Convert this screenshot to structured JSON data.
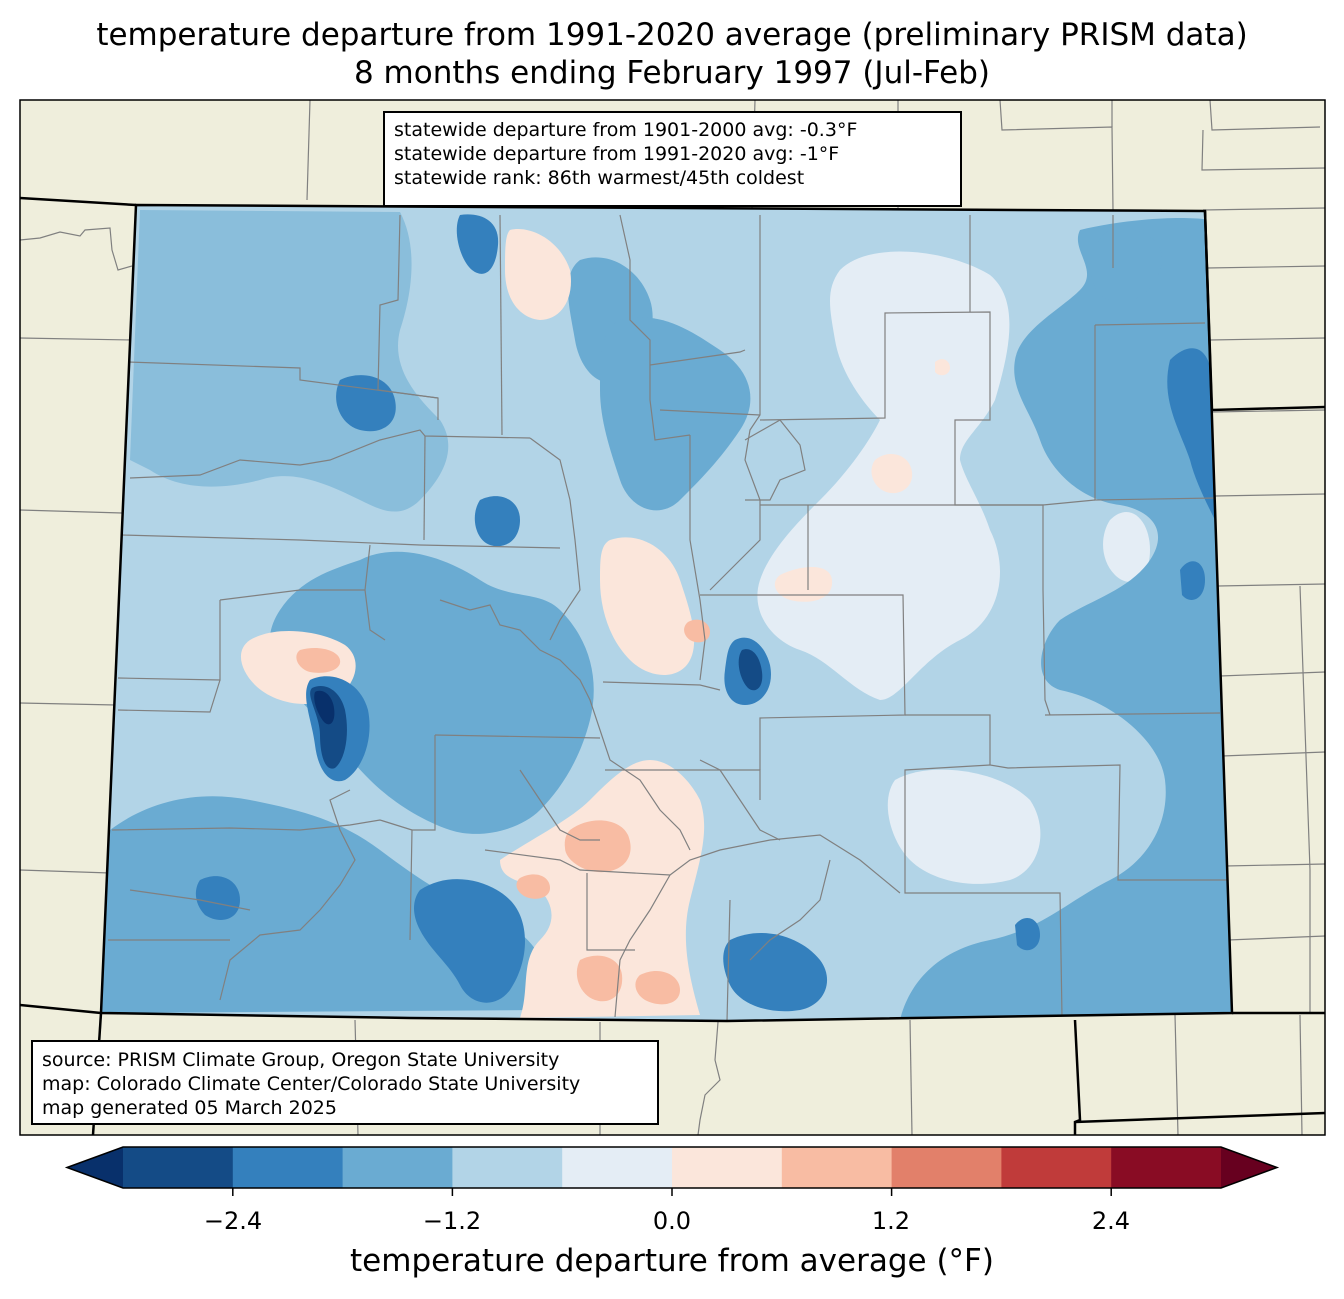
{
  "title": {
    "line1": "temperature departure from 1991-2020 average (preliminary PRISM data)",
    "line2": "8 months ending February 1997 (Jul-Feb)"
  },
  "stats": {
    "line1": "statewide departure from 1901-2000 avg: -0.3°F",
    "line2": "statewide departure from 1991-2020 avg: -1°F",
    "line3": "statewide rank: 86th warmest/45th coldest"
  },
  "source": {
    "line1": "source: PRISM Climate Group, Oregon State University",
    "line2": "map: Colorado Climate Center/Colorado State University",
    "line3": "map generated 05 March 2025"
  },
  "colorbar": {
    "title": "temperature departure from average (°F)",
    "ticks": [
      "−2.4",
      "−1.2",
      "0.0",
      "1.2",
      "2.4"
    ],
    "tick_values": [
      -2.4,
      -1.2,
      0.0,
      1.2,
      2.4
    ],
    "bounds": [
      -3.0,
      -2.4,
      -1.8,
      -1.2,
      -0.6,
      0.0,
      0.6,
      1.2,
      1.8,
      2.4,
      3.0
    ],
    "colors": [
      "#08306b",
      "#144b86",
      "#3480bd",
      "#6aabd2",
      "#b2d4e7",
      "#e4edf5",
      "#fbe6db",
      "#f8bca3",
      "#e2806a",
      "#c03b3a",
      "#890c24",
      "#67001f"
    ]
  },
  "colors": {
    "land": "#efeedc",
    "county_line": "#808080",
    "state_line": "#000000"
  }
}
